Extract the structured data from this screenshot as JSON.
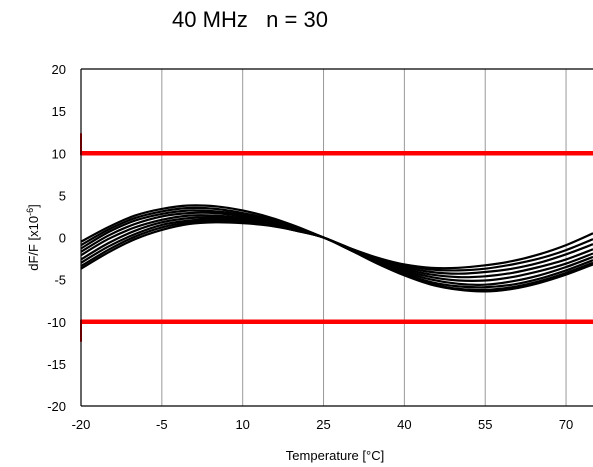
{
  "chart_data": {
    "type": "line",
    "title": "40 MHz   n = 30",
    "xlabel": "Temperature [°C]",
    "ylabel": "dF/F [x10",
    "ylabel_sup": "-6",
    "ylabel_end": "]",
    "xlim": [
      -20,
      75
    ],
    "ylim": [
      -20,
      20
    ],
    "x_ticks": [
      -20,
      -5,
      10,
      25,
      40,
      55,
      70
    ],
    "y_ticks": [
      20,
      15,
      10,
      5,
      0,
      -5,
      -10,
      -15,
      -20
    ],
    "grid": "vertical",
    "limit_lines": [
      {
        "name": "upper limit",
        "y": 10,
        "color": "#ff0000"
      },
      {
        "name": "lower limit",
        "y": -10,
        "color": "#ff0000"
      }
    ],
    "curve_color": "#000000",
    "x": [
      -20,
      -15,
      -10,
      -5,
      0,
      5,
      10,
      15,
      20,
      25,
      30,
      35,
      40,
      45,
      50,
      55,
      60,
      65,
      70,
      75
    ],
    "series": [
      {
        "values": [
          -0.5,
          1.2,
          2.6,
          3.4,
          3.8,
          3.7,
          3.2,
          2.4,
          1.3,
          0.0,
          -1.3,
          -2.4,
          -3.2,
          -3.6,
          -3.6,
          -3.3,
          -2.8,
          -2.0,
          -0.9,
          0.5
        ]
      },
      {
        "values": [
          -0.9,
          0.9,
          2.3,
          3.1,
          3.5,
          3.4,
          2.9,
          2.2,
          1.2,
          0.0,
          -1.3,
          -2.5,
          -3.3,
          -3.8,
          -3.9,
          -3.7,
          -3.2,
          -2.5,
          -1.5,
          -0.2
        ]
      },
      {
        "values": [
          -1.3,
          0.6,
          2.0,
          2.8,
          3.2,
          3.1,
          2.7,
          2.0,
          1.1,
          0.0,
          -1.3,
          -2.6,
          -3.5,
          -4.1,
          -4.3,
          -4.1,
          -3.7,
          -3.0,
          -2.0,
          -0.8
        ]
      },
      {
        "values": [
          -1.7,
          0.2,
          1.6,
          2.5,
          2.9,
          2.9,
          2.5,
          1.9,
          1.0,
          0.0,
          -1.3,
          -2.6,
          -3.7,
          -4.4,
          -4.7,
          -4.6,
          -4.2,
          -3.5,
          -2.6,
          -1.4
        ]
      },
      {
        "values": [
          -2.1,
          -0.2,
          1.2,
          2.1,
          2.6,
          2.6,
          2.3,
          1.8,
          1.0,
          0.0,
          -1.4,
          -2.7,
          -3.9,
          -4.7,
          -5.1,
          -5.1,
          -4.7,
          -4.0,
          -3.1,
          -1.9
        ]
      },
      {
        "values": [
          -2.6,
          -0.7,
          0.8,
          1.8,
          2.3,
          2.4,
          2.2,
          1.7,
          0.9,
          0.0,
          -1.4,
          -2.8,
          -4.1,
          -5.0,
          -5.5,
          -5.6,
          -5.2,
          -4.5,
          -3.5,
          -2.3
        ]
      },
      {
        "values": [
          -3.0,
          -1.1,
          0.4,
          1.5,
          2.0,
          2.2,
          2.0,
          1.6,
          0.9,
          0.0,
          -1.5,
          -2.9,
          -4.3,
          -5.3,
          -5.8,
          -5.9,
          -5.6,
          -4.9,
          -3.9,
          -2.7
        ]
      },
      {
        "values": [
          -3.4,
          -1.5,
          0.1,
          1.2,
          1.8,
          2.0,
          1.9,
          1.5,
          0.8,
          0.0,
          -1.5,
          -3.0,
          -4.4,
          -5.5,
          -6.1,
          -6.2,
          -5.9,
          -5.2,
          -4.2,
          -3.0
        ]
      },
      {
        "values": [
          -3.7,
          -1.8,
          -0.2,
          0.9,
          1.6,
          1.8,
          1.7,
          1.4,
          0.8,
          0.0,
          -1.5,
          -3.1,
          -4.5,
          -5.6,
          -6.2,
          -6.4,
          -6.1,
          -5.4,
          -4.4,
          -3.2
        ]
      }
    ]
  }
}
